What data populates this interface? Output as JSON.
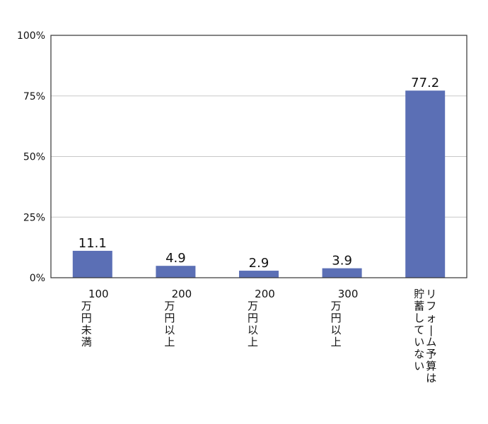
{
  "chart_data": {
    "type": "bar",
    "categories": [
      "100\n万円未満",
      "200\n万円以上",
      "200\n万円以上",
      "300\n万円以上",
      "リフォーム予算は\n貯蓄していない"
    ],
    "values": [
      11.1,
      4.9,
      2.9,
      3.9,
      77.2
    ],
    "value_labels": [
      "11.1",
      "4.9",
      "2.9",
      "3.9",
      "77.2"
    ],
    "yticks": [
      0,
      25,
      50,
      75,
      100
    ],
    "ytick_labels": [
      "0%",
      "25%",
      "50%",
      "75%",
      "100%"
    ],
    "ylim": [
      0,
      100
    ],
    "title": "",
    "xlabel": "",
    "ylabel": "",
    "grid": true,
    "colors": {
      "bar": "#5b6fb5",
      "grid": "#c8c8c8",
      "frame": "#333333"
    }
  }
}
